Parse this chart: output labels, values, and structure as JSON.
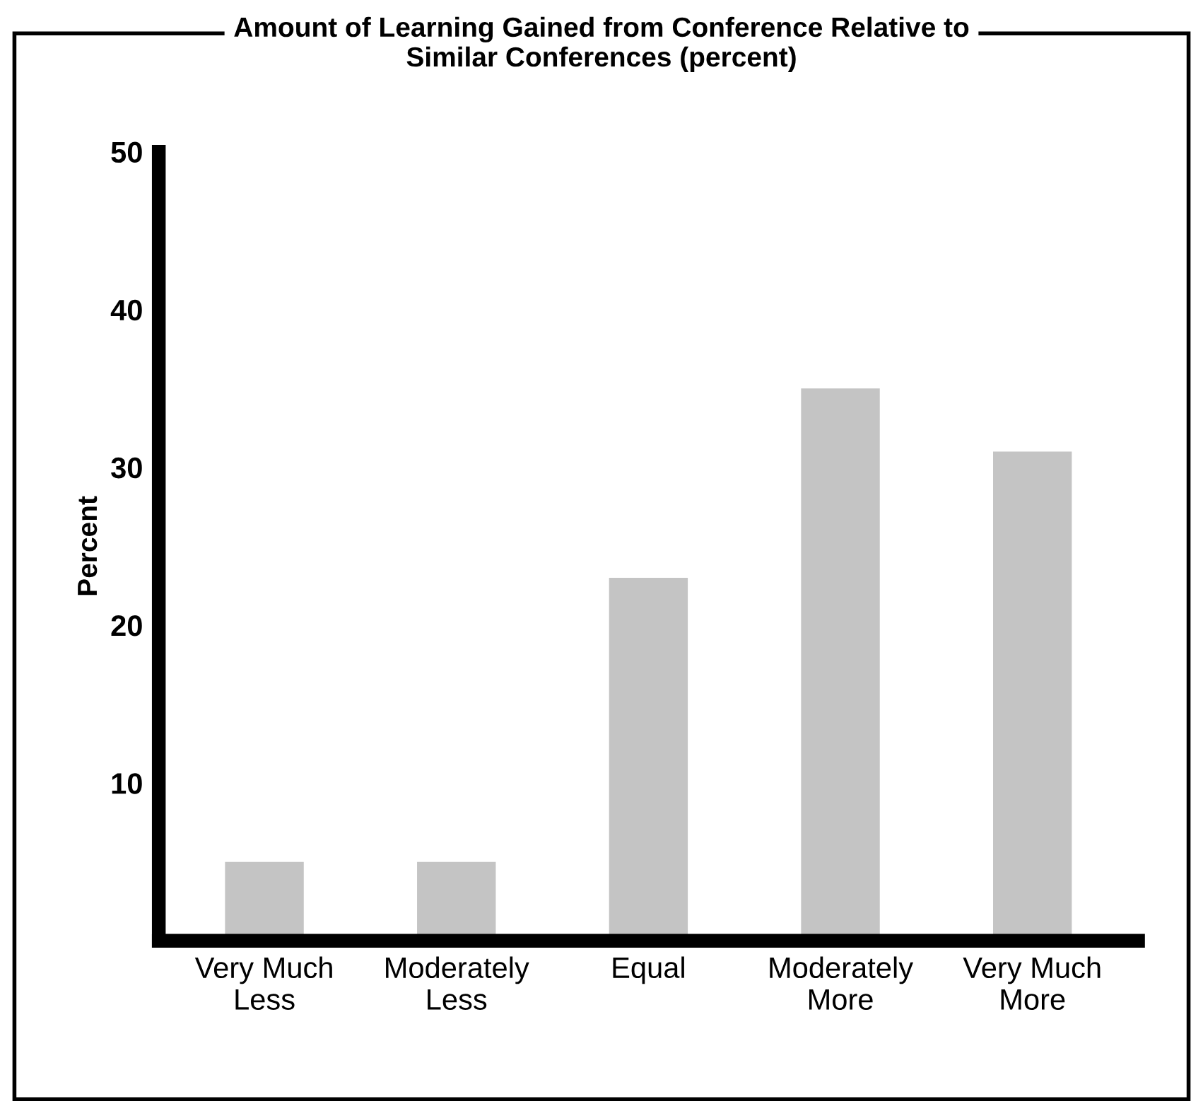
{
  "chart_data": {
    "type": "bar",
    "title": "Amount of Learning Gained from Conference Relative to\nSimilar Conferences (percent)",
    "ylabel": "Percent",
    "categories": [
      "Very Much\nLess",
      "Moderately\nLess",
      "Equal",
      "Moderately\nMore",
      "Very Much\nMore"
    ],
    "values": [
      5,
      5,
      23,
      35,
      31
    ],
    "color": "#c4c4c4",
    "ylim": [
      0,
      50
    ],
    "yticks": [
      10,
      20,
      30,
      40,
      50
    ],
    "grid": false
  }
}
